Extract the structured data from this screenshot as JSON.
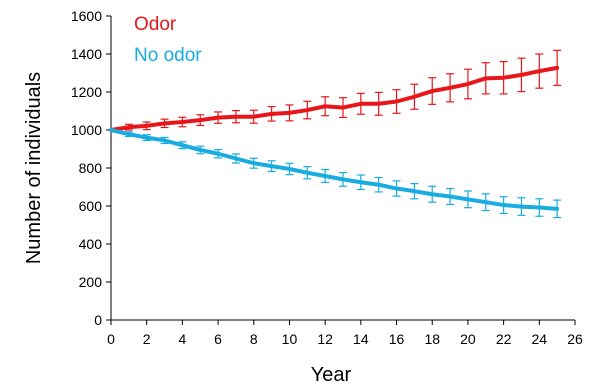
{
  "chart_data": {
    "type": "line",
    "title": "",
    "xlabel": "Year",
    "ylabel": "Number of individuals",
    "xlim": [
      0,
      26
    ],
    "ylim": [
      0,
      1600
    ],
    "x_ticks": [
      0,
      2,
      4,
      6,
      8,
      10,
      12,
      14,
      16,
      18,
      20,
      22,
      24,
      26
    ],
    "y_ticks": [
      0,
      200,
      400,
      600,
      800,
      1000,
      1200,
      1400,
      1600
    ],
    "grid": false,
    "legend_position": "top-left",
    "x": [
      0,
      1,
      2,
      3,
      4,
      5,
      6,
      7,
      8,
      9,
      10,
      11,
      12,
      13,
      14,
      15,
      16,
      17,
      18,
      19,
      20,
      21,
      22,
      23,
      24,
      25
    ],
    "series": [
      {
        "name": "Odor",
        "color": "#e8161b",
        "values": [
          1000,
          1015,
          1022,
          1035,
          1042,
          1052,
          1065,
          1070,
          1070,
          1085,
          1090,
          1105,
          1125,
          1118,
          1138,
          1138,
          1150,
          1175,
          1205,
          1222,
          1242,
          1272,
          1275,
          1290,
          1310,
          1327
        ],
        "error": [
          0,
          15,
          20,
          22,
          25,
          28,
          30,
          32,
          34,
          38,
          42,
          46,
          50,
          52,
          55,
          60,
          62,
          66,
          70,
          74,
          78,
          82,
          85,
          88,
          90,
          92
        ]
      },
      {
        "name": "No odor",
        "color": "#18ace0",
        "values": [
          1000,
          978,
          960,
          945,
          920,
          895,
          875,
          850,
          825,
          810,
          795,
          775,
          758,
          740,
          725,
          712,
          692,
          678,
          662,
          650,
          635,
          620,
          605,
          597,
          592,
          585
        ],
        "error": [
          0,
          12,
          15,
          16,
          18,
          20,
          22,
          24,
          26,
          28,
          30,
          32,
          34,
          36,
          38,
          38,
          40,
          40,
          42,
          42,
          44,
          44,
          44,
          46,
          46,
          46
        ]
      }
    ]
  }
}
